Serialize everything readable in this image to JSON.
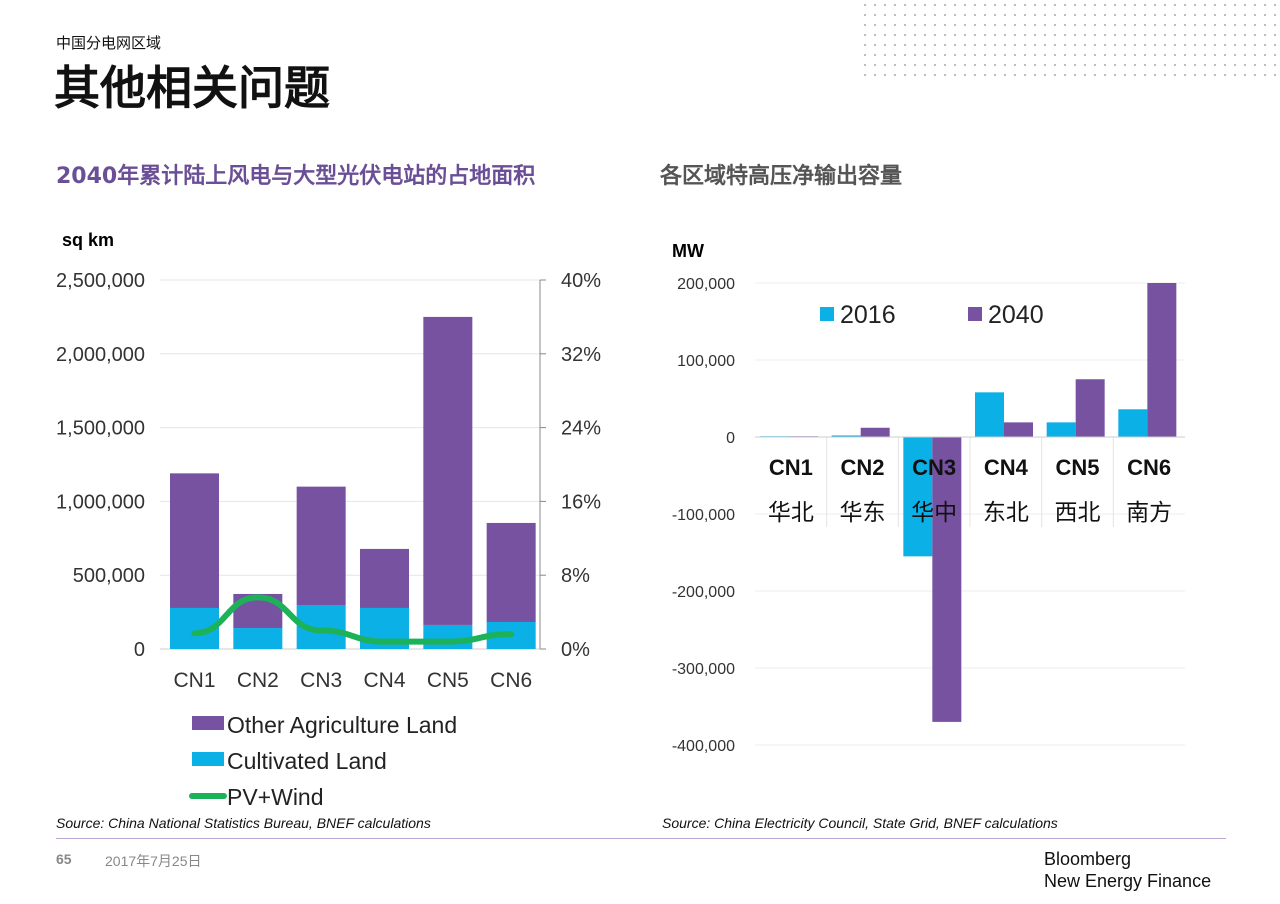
{
  "header": {
    "subtitle": "中国分电网区域",
    "title": "其他相关问题"
  },
  "footer": {
    "page": "65",
    "date": "2017年7月25日",
    "brand_line1": "Bloomberg",
    "brand_line2": "New Energy Finance"
  },
  "colors": {
    "purple": "#7652a0",
    "cyan": "#0ab0e6",
    "green": "#1db25a",
    "title_purple": "#6b4f96"
  },
  "chart_data": [
    {
      "type": "bar",
      "stacked": true,
      "title": "2040年累计陆上风电与大型光伏电站的占地面积",
      "ylabel": "sq km",
      "categories": [
        "CN1",
        "CN2",
        "CN3",
        "CN4",
        "CN5",
        "CN6"
      ],
      "ylim": [
        0,
        2500000
      ],
      "yticks": [
        "0",
        "500,000",
        "1,000,000",
        "1,500,000",
        "2,000,000",
        "2,500,000"
      ],
      "y2lim": [
        0,
        40
      ],
      "y2ticks": [
        "0%",
        "8%",
        "16%",
        "24%",
        "32%",
        "40%"
      ],
      "series": [
        {
          "name": "Cultivated Land",
          "kind": "bar",
          "values": [
            278000,
            142000,
            298000,
            278000,
            163000,
            183000
          ]
        },
        {
          "name": "Other Agriculture Land",
          "kind": "bar",
          "values": [
            912000,
            231000,
            802000,
            400000,
            2087000,
            671000
          ]
        },
        {
          "name": "PV+Wind",
          "kind": "line",
          "axis": "right",
          "values": [
            1.7,
            5.6,
            2.0,
            0.8,
            0.8,
            1.6
          ]
        }
      ],
      "legend": [
        "Other Agriculture Land",
        "Cultivated Land",
        "PV+Wind"
      ],
      "source": "Source: China National Statistics Bureau, BNEF calculations"
    },
    {
      "type": "bar",
      "title": "各区域特高压净输出容量",
      "ylabel": "MW",
      "categories": [
        "CN1",
        "CN2",
        "CN3",
        "CN4",
        "CN5",
        "CN6"
      ],
      "category_sub": [
        "华北",
        "华东",
        "华中",
        "东北",
        "西北",
        "南方"
      ],
      "ylim": [
        -400000,
        200000
      ],
      "yticks": [
        "200,000",
        "100,000",
        "0",
        "-100,000",
        "-200,000",
        "-300,000",
        "-400,000"
      ],
      "series": [
        {
          "name": "2016",
          "values": [
            1000,
            2000,
            -155000,
            58000,
            19000,
            36000
          ]
        },
        {
          "name": "2040",
          "values": [
            1000,
            12000,
            -370000,
            19000,
            75000,
            200000
          ]
        }
      ],
      "source": "Source: China Electricity Council, State Grid, BNEF calculations"
    }
  ]
}
